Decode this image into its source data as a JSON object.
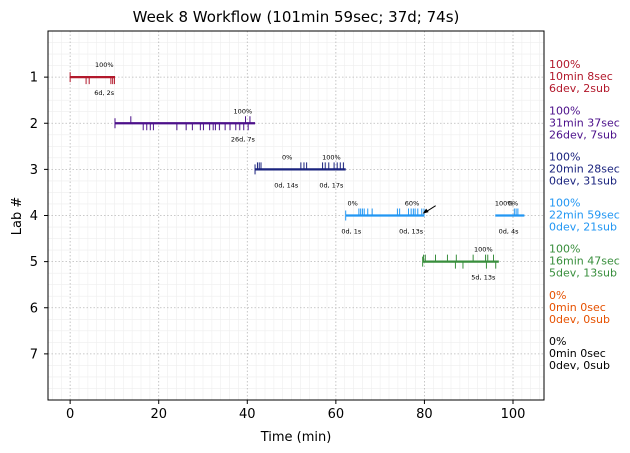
{
  "chart_data": {
    "type": "timeline",
    "title": "Week 8 Workflow (101min 59sec; 37d; 74s)",
    "xlabel": "Time (min)",
    "ylabel": "Lab #",
    "xlim": [
      -5,
      107
    ],
    "ylim": [
      8,
      0
    ],
    "xticks": [
      "0",
      "20",
      "40",
      "60",
      "80",
      "100"
    ],
    "yticks": [
      "1",
      "2",
      "3",
      "4",
      "5",
      "6",
      "7"
    ],
    "grid": true,
    "labs": [
      {
        "lab": 1,
        "color": "#b2182b",
        "start": 0,
        "end": 10.13,
        "ticks_down": [
          3.6,
          4.3,
          9.2,
          9.6,
          10.0
        ],
        "ticks_up": [],
        "pct": [
          {
            "x": 7.7,
            "text": "100%"
          }
        ],
        "counts": [
          {
            "x": 7.7,
            "text": "6d, 2s"
          }
        ],
        "side": [
          "100%",
          "10min 8sec",
          "6dev, 2sub"
        ]
      },
      {
        "lab": 2,
        "color": "#4b0f8a",
        "start": 10.13,
        "end": 41.75,
        "ticks_down": [
          16.5,
          17.3,
          18.1,
          18.8,
          24.1,
          26.2,
          27.6,
          29.4,
          30.1,
          31.5,
          32.3,
          32.8,
          33.7,
          35.0,
          36.1,
          37.4,
          38.3,
          39.2,
          40.2
        ],
        "ticks_up": [
          13.7,
          39.6,
          40.6
        ],
        "pct": [
          {
            "x": 39.0,
            "text": "100%"
          }
        ],
        "counts": [
          {
            "x": 39.0,
            "text": "26d, 7s"
          }
        ],
        "side": [
          "100%",
          "31min 37sec",
          "26dev, 7sub"
        ]
      },
      {
        "lab": 3,
        "color": "#1a237e",
        "start": 41.75,
        "end": 62.22,
        "ticks_down": [],
        "ticks_up": [
          42.3,
          42.7,
          43.1,
          52.1,
          52.8,
          53.4,
          57.0,
          57.6,
          58.4,
          59.6,
          60.3,
          61.0,
          61.7
        ],
        "pct": [
          {
            "x": 49.0,
            "text": "0%"
          },
          {
            "x": 59.0,
            "text": "100%"
          }
        ],
        "counts": [
          {
            "x": 48.8,
            "text": "0d, 14s"
          },
          {
            "x": 59.0,
            "text": "0d, 17s"
          }
        ],
        "side": [
          "100%",
          "20min 28sec",
          "0dev, 31sub"
        ]
      },
      {
        "lab": 4,
        "color": "#2196f3",
        "start": 62.22,
        "end": 80.0,
        "start2": 96.0,
        "end2": 102.57,
        "ticks_down": [],
        "ticks_up": [
          65.2,
          65.6,
          66.0,
          66.4,
          67.2,
          68.2,
          73.9,
          74.4,
          76.4,
          77.0,
          77.5,
          77.9,
          78.5,
          79.4,
          79.9,
          100.3,
          100.7,
          101.1
        ],
        "pct": [
          {
            "x": 63.8,
            "text": "0%"
          },
          {
            "x": 77.2,
            "text": "60%"
          },
          {
            "x": 98.0,
            "text": "100%"
          },
          {
            "x": 100.0,
            "text": "0%"
          }
        ],
        "counts": [
          {
            "x": 63.5,
            "text": "0d, 1s"
          },
          {
            "x": 77.0,
            "text": "0d, 13s"
          },
          {
            "x": 99.0,
            "text": "0d, 4s"
          }
        ],
        "arrow_to": {
          "x": 79.6,
          "y": 3.96
        },
        "side": [
          "100%",
          "22min 59sec",
          "0dev, 21sub"
        ]
      },
      {
        "lab": 5,
        "color": "#388e3c",
        "start": 79.6,
        "end": 96.8,
        "ticks_down": [
          87.0,
          88.7,
          94.0,
          96.1
        ],
        "ticks_up": [
          79.8,
          80.2,
          82.5,
          85.2,
          87.2,
          91.0,
          93.8,
          94.3,
          95.6
        ],
        "pct": [
          {
            "x": 93.3,
            "text": "100%"
          }
        ],
        "counts": [
          {
            "x": 93.3,
            "text": "5d, 13s"
          }
        ],
        "side": [
          "100%",
          "16min 47sec",
          "5dev, 13sub"
        ]
      },
      {
        "lab": 6,
        "color": "#e65100",
        "start": null,
        "end": null,
        "ticks_down": [],
        "ticks_up": [],
        "pct": [],
        "counts": [],
        "side": [
          "0%",
          "0min 0sec",
          "0dev, 0sub"
        ]
      },
      {
        "lab": 7,
        "color": "#000000",
        "start": null,
        "end": null,
        "ticks_down": [],
        "ticks_up": [],
        "pct": [],
        "counts": [],
        "side": [
          "0%",
          "0min 0sec",
          "0dev, 0sub"
        ]
      }
    ]
  }
}
